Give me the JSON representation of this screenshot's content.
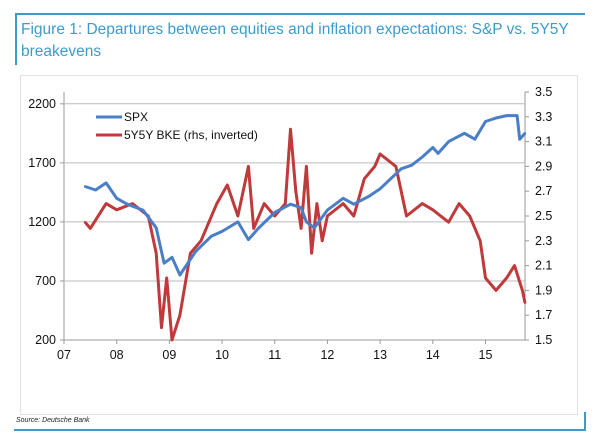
{
  "title": "Figure 1: Departures between equities and inflation expectations: S&P vs. 5Y5Y breakevens",
  "source": "Source: Deutsche Bank",
  "colors": {
    "accent": "#3c9bc8",
    "spx": "#4a7fc8",
    "bke": "#c0393b"
  },
  "chart_data": {
    "type": "line",
    "title": "Figure 1: Departures between equities and inflation expectations: S&P vs. 5Y5Y breakevens",
    "xlabel": "",
    "ylabel": "",
    "x_ticks": [
      "07",
      "08",
      "09",
      "10",
      "11",
      "12",
      "13",
      "14",
      "15"
    ],
    "x_range": [
      2007,
      2015.75
    ],
    "y_left": {
      "ticks": [
        "2200",
        "1700",
        "1200",
        "700",
        "200"
      ],
      "range": [
        200,
        2300
      ]
    },
    "y_right": {
      "ticks": [
        "3.5",
        "3.3",
        "3.1",
        "2.9",
        "2.7",
        "2.5",
        "2.3",
        "2.1",
        "1.9",
        "1.7",
        "1.5"
      ],
      "range": [
        1.5,
        3.5
      ]
    },
    "legend_position": "top-left",
    "series": [
      {
        "name": "SPX",
        "axis": "left",
        "x": [
          2007.4,
          2007.6,
          2007.8,
          2008.0,
          2008.2,
          2008.5,
          2008.75,
          2008.9,
          2009.05,
          2009.2,
          2009.5,
          2009.8,
          2010.0,
          2010.3,
          2010.5,
          2010.7,
          2011.0,
          2011.3,
          2011.5,
          2011.6,
          2011.75,
          2012.0,
          2012.3,
          2012.5,
          2012.8,
          2013.0,
          2013.4,
          2013.6,
          2013.8,
          2014.0,
          2014.1,
          2014.3,
          2014.6,
          2014.8,
          2015.0,
          2015.2,
          2015.4,
          2015.6,
          2015.65,
          2015.75
        ],
        "values": [
          1500,
          1470,
          1530,
          1400,
          1350,
          1300,
          1150,
          850,
          900,
          750,
          950,
          1080,
          1120,
          1200,
          1050,
          1150,
          1280,
          1350,
          1320,
          1200,
          1150,
          1300,
          1400,
          1350,
          1420,
          1480,
          1650,
          1680,
          1750,
          1830,
          1780,
          1880,
          1950,
          1900,
          2050,
          2080,
          2100,
          2100,
          1900,
          1950
        ]
      },
      {
        "name": "5Y5Y BKE (rhs, inverted)",
        "axis": "right",
        "x": [
          2007.4,
          2007.5,
          2007.8,
          2008.0,
          2008.3,
          2008.6,
          2008.75,
          2008.85,
          2008.95,
          2009.05,
          2009.2,
          2009.4,
          2009.6,
          2009.9,
          2010.1,
          2010.3,
          2010.5,
          2010.6,
          2010.8,
          2011.0,
          2011.2,
          2011.3,
          2011.4,
          2011.5,
          2011.6,
          2011.7,
          2011.8,
          2011.9,
          2012.0,
          2012.3,
          2012.5,
          2012.7,
          2012.9,
          2013.0,
          2013.3,
          2013.5,
          2013.8,
          2014.0,
          2014.3,
          2014.5,
          2014.7,
          2014.9,
          2015.0,
          2015.2,
          2015.4,
          2015.55,
          2015.7,
          2015.75
        ],
        "values": [
          2.45,
          2.4,
          2.6,
          2.55,
          2.6,
          2.5,
          2.2,
          1.6,
          2.0,
          1.5,
          1.7,
          2.2,
          2.3,
          2.6,
          2.75,
          2.5,
          2.9,
          2.4,
          2.6,
          2.5,
          2.6,
          3.2,
          2.7,
          2.4,
          2.9,
          2.2,
          2.6,
          2.3,
          2.5,
          2.6,
          2.5,
          2.8,
          2.9,
          3.0,
          2.9,
          2.5,
          2.6,
          2.55,
          2.45,
          2.6,
          2.5,
          2.3,
          2.0,
          1.9,
          2.0,
          2.1,
          1.9,
          1.8
        ]
      }
    ]
  }
}
